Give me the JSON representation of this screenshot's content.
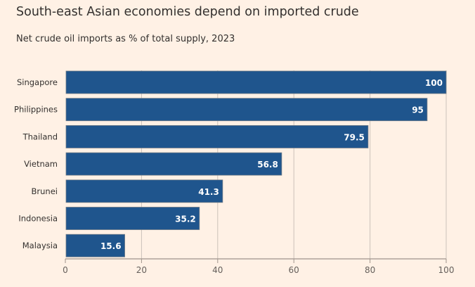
{
  "chart_data": {
    "type": "bar",
    "orientation": "horizontal",
    "title": "South-east Asian economies depend on imported crude",
    "subtitle": "Net crude oil imports as % of total supply, 2023",
    "categories": [
      "Singapore",
      "Philippines",
      "Thailand",
      "Vietnam",
      "Brunei",
      "Indonesia",
      "Malaysia"
    ],
    "values": [
      100,
      95,
      79.5,
      56.8,
      41.3,
      35.2,
      15.6
    ],
    "data_labels": [
      "100",
      "95",
      "79.5",
      "56.8",
      "41.3",
      "35.2",
      "15.6"
    ],
    "xlim": [
      0,
      100
    ],
    "xticks": [
      "0",
      "20",
      "40",
      "60",
      "80",
      "100"
    ],
    "xlabel": "",
    "ylabel": "",
    "grid": true,
    "colors": {
      "bar": "#1f558d",
      "background": "#fff1e5",
      "grid": "#cbc2ba",
      "axis": "#9e948c"
    }
  }
}
